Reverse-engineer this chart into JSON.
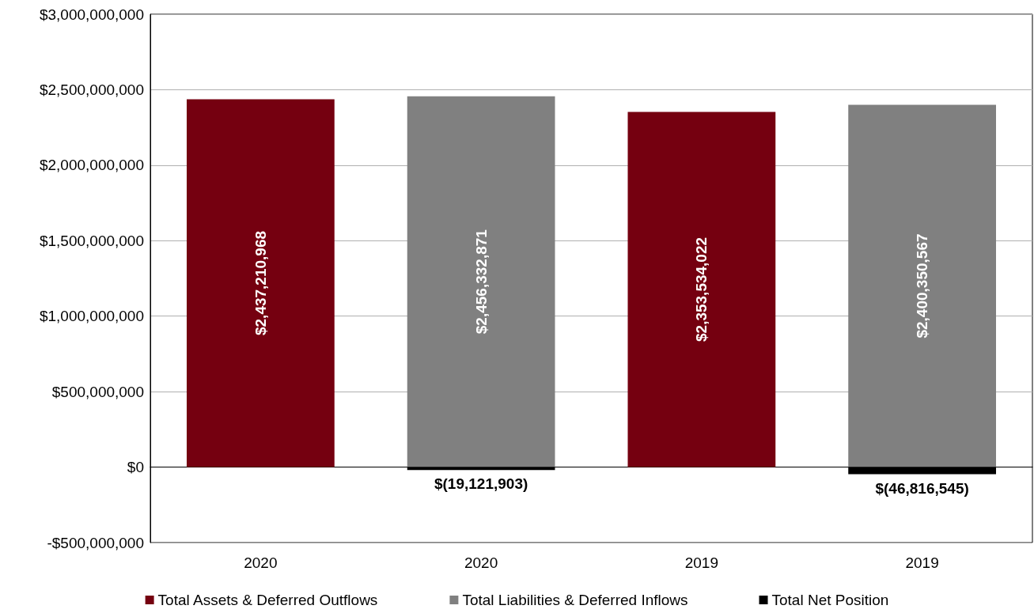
{
  "chart_data": {
    "type": "bar",
    "categories": [
      "2020",
      "2020",
      "2019",
      "2019"
    ],
    "stacked": true,
    "series": [
      {
        "name": "Total Assets & Deferred Outflows",
        "color": "#750010",
        "values": [
          2437210968,
          null,
          2353534022,
          null
        ],
        "value_labels": [
          "$2,437,210,968",
          null,
          "$2,353,534,022",
          null
        ]
      },
      {
        "name": "Total Liabilities & Deferred Inflows",
        "color": "#808080",
        "values": [
          null,
          2456332871,
          null,
          2400350567
        ],
        "value_labels": [
          null,
          "$2,456,332,871",
          null,
          "$2,400,350,567"
        ]
      },
      {
        "name": "Total Net Position",
        "color": "#000000",
        "values": [
          null,
          -19121903,
          null,
          -46816545
        ],
        "value_labels": [
          null,
          "$(19,121,903)",
          null,
          "$(46,816,545)"
        ]
      }
    ],
    "ylim": [
      -500000000,
      3000000000
    ],
    "yticks": [
      {
        "value": -500000000,
        "label": "-$500,000,000"
      },
      {
        "value": 0,
        "label": "$0"
      },
      {
        "value": 500000000,
        "label": "$500,000,000"
      },
      {
        "value": 1000000000,
        "label": "$1,000,000,000"
      },
      {
        "value": 1500000000,
        "label": "$1,500,000,000"
      },
      {
        "value": 2000000000,
        "label": "$2,000,000,000"
      },
      {
        "value": 2500000000,
        "label": "$2,500,000,000"
      },
      {
        "value": 3000000000,
        "label": "$3,000,000,000"
      }
    ],
    "grid": "y",
    "legend": "bottom"
  }
}
